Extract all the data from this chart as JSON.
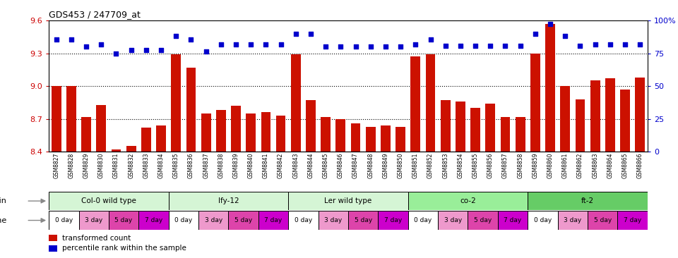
{
  "title": "GDS453 / 247709_at",
  "ylim": [
    8.4,
    9.6
  ],
  "yticks": [
    8.4,
    8.7,
    9.0,
    9.3,
    9.6
  ],
  "right_yticks": [
    0,
    25,
    50,
    75,
    100
  ],
  "right_ytick_labels": [
    "0",
    "25",
    "50",
    "75",
    "100%"
  ],
  "samples": [
    "GSM8827",
    "GSM8828",
    "GSM8829",
    "GSM8830",
    "GSM8831",
    "GSM8832",
    "GSM8833",
    "GSM8834",
    "GSM8835",
    "GSM8836",
    "GSM8837",
    "GSM8838",
    "GSM8839",
    "GSM8840",
    "GSM8841",
    "GSM8842",
    "GSM8843",
    "GSM8844",
    "GSM8845",
    "GSM8846",
    "GSM8847",
    "GSM8848",
    "GSM8849",
    "GSM8850",
    "GSM8851",
    "GSM8852",
    "GSM8853",
    "GSM8854",
    "GSM8855",
    "GSM8856",
    "GSM8857",
    "GSM8858",
    "GSM8859",
    "GSM8860",
    "GSM8861",
    "GSM8862",
    "GSM8863",
    "GSM8864",
    "GSM8865",
    "GSM8866"
  ],
  "bar_values": [
    9.0,
    9.0,
    8.72,
    8.83,
    8.42,
    8.45,
    8.62,
    8.64,
    9.29,
    9.17,
    8.75,
    8.78,
    8.82,
    8.75,
    8.76,
    8.73,
    9.29,
    8.87,
    8.72,
    8.7,
    8.66,
    8.63,
    8.64,
    8.63,
    9.27,
    9.29,
    8.87,
    8.86,
    8.8,
    8.84,
    8.72,
    8.72,
    9.3,
    9.57,
    9.0,
    8.88,
    9.05,
    9.07,
    8.97,
    9.08
  ],
  "dot_values": [
    9.43,
    9.43,
    9.36,
    9.38,
    9.3,
    9.33,
    9.33,
    9.33,
    9.46,
    9.43,
    9.32,
    9.38,
    9.38,
    9.38,
    9.38,
    9.38,
    9.48,
    9.48,
    9.36,
    9.36,
    9.36,
    9.36,
    9.36,
    9.36,
    9.38,
    9.43,
    9.37,
    9.37,
    9.37,
    9.37,
    9.37,
    9.37,
    9.48,
    9.57,
    9.46,
    9.37,
    9.38,
    9.38,
    9.38,
    9.38
  ],
  "bar_color": "#cc1100",
  "dot_color": "#0000cc",
  "strains": [
    {
      "label": "Col-0 wild type",
      "start": 0,
      "end": 8,
      "color": "#d5f5d5"
    },
    {
      "label": "lfy-12",
      "start": 8,
      "end": 16,
      "color": "#d5f5d5"
    },
    {
      "label": "Ler wild type",
      "start": 16,
      "end": 24,
      "color": "#d5f5d5"
    },
    {
      "label": "co-2",
      "start": 24,
      "end": 32,
      "color": "#99ee99"
    },
    {
      "label": "ft-2",
      "start": 32,
      "end": 40,
      "color": "#66cc66"
    }
  ],
  "time_labels": [
    "0 day",
    "3 day",
    "5 day",
    "7 day"
  ],
  "time_colors": [
    "#ffffff",
    "#ee99cc",
    "#dd44aa",
    "#cc00cc"
  ],
  "bg_color": "#ffffff",
  "left_tick_color": "#cc0000",
  "right_tick_color": "#0000cc"
}
